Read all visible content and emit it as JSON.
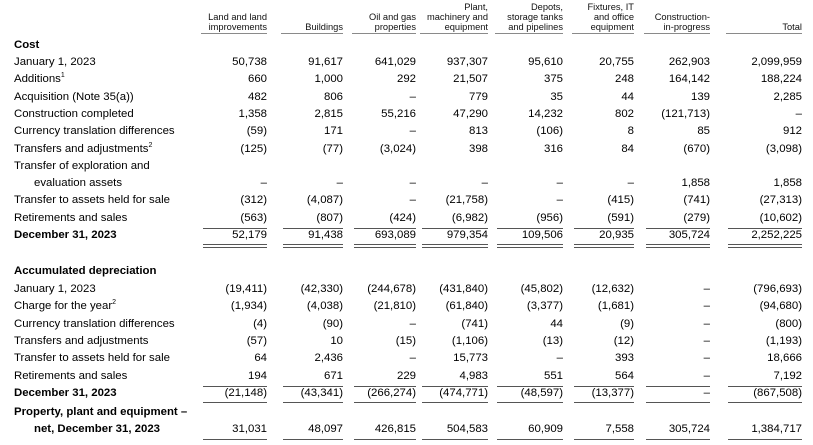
{
  "columns": [
    [
      "Land and land",
      "improvements"
    ],
    [
      "Buildings"
    ],
    [
      "Oil and gas",
      "properties"
    ],
    [
      "Plant,",
      "machinery and",
      "equipment"
    ],
    [
      "Depots,",
      "storage tanks",
      "and pipelines"
    ],
    [
      "Fixtures, IT",
      "and office",
      "equipment"
    ],
    [
      "Construction-",
      "in-progress"
    ],
    [
      "Total"
    ]
  ],
  "sections": {
    "cost": "Cost",
    "accum": "Accumulated depreciation"
  },
  "cost_rows": [
    {
      "label": "January 1, 2023",
      "sup": "",
      "values": [
        "50,738",
        "91,617",
        "641,029",
        "937,307",
        "95,610",
        "20,755",
        "262,903",
        "2,099,959"
      ]
    },
    {
      "label": "Additions",
      "sup": "1",
      "values": [
        "660",
        "1,000",
        "292",
        "21,507",
        "375",
        "248",
        "164,142",
        "188,224"
      ]
    },
    {
      "label": "Acquisition (Note 35(a))",
      "sup": "",
      "values": [
        "482",
        "806",
        "–",
        "779",
        "35",
        "44",
        "139",
        "2,285"
      ]
    },
    {
      "label": "Construction completed",
      "sup": "",
      "values": [
        "1,358",
        "2,815",
        "55,216",
        "47,290",
        "14,232",
        "802",
        "(121,713)",
        "–"
      ]
    },
    {
      "label": "Currency translation differences",
      "sup": "",
      "values": [
        "(59)",
        "171",
        "–",
        "813",
        "(106)",
        "8",
        "85",
        "912"
      ]
    },
    {
      "label": "Transfers and adjustments",
      "sup": "2",
      "values": [
        "(125)",
        "(77)",
        "(3,024)",
        "398",
        "316",
        "84",
        "(670)",
        "(3,098)"
      ]
    },
    {
      "label": "Transfer of exploration and",
      "sup": "",
      "values": [
        "",
        "",
        "",
        "",
        "",
        "",
        "",
        ""
      ]
    },
    {
      "label": "evaluation assets",
      "sup": "",
      "indent": true,
      "values": [
        "–",
        "–",
        "–",
        "–",
        "–",
        "–",
        "1,858",
        "1,858"
      ]
    },
    {
      "label": "Transfer to assets held for sale",
      "sup": "",
      "values": [
        "(312)",
        "(4,087)",
        "–",
        "(21,758)",
        "–",
        "(415)",
        "(741)",
        "(27,313)"
      ]
    },
    {
      "label": "Retirements and sales",
      "sup": "",
      "values": [
        "(563)",
        "(807)",
        "(424)",
        "(6,982)",
        "(956)",
        "(591)",
        "(279)",
        "(10,602)"
      ]
    },
    {
      "label": "December 31, 2023",
      "sup": "",
      "bold": true,
      "values": [
        "52,179",
        "91,438",
        "693,089",
        "979,354",
        "109,506",
        "20,935",
        "305,724",
        "2,252,225"
      ]
    }
  ],
  "accum_rows": [
    {
      "label": "January 1, 2023",
      "sup": "",
      "values": [
        "(19,411)",
        "(42,330)",
        "(244,678)",
        "(431,840)",
        "(45,802)",
        "(12,632)",
        "–",
        "(796,693)"
      ]
    },
    {
      "label": "Charge for the year",
      "sup": "2",
      "values": [
        "(1,934)",
        "(4,038)",
        "(21,810)",
        "(61,840)",
        "(3,377)",
        "(1,681)",
        "–",
        "(94,680)"
      ]
    },
    {
      "label": "Currency translation differences",
      "sup": "",
      "values": [
        "(4)",
        "(90)",
        "–",
        "(741)",
        "44",
        "(9)",
        "–",
        "(800)"
      ]
    },
    {
      "label": "Transfers and adjustments",
      "sup": "",
      "values": [
        "(57)",
        "10",
        "(15)",
        "(1,106)",
        "(13)",
        "(12)",
        "–",
        "(1,193)"
      ]
    },
    {
      "label": "Transfer to assets held for sale",
      "sup": "",
      "values": [
        "64",
        "2,436",
        "–",
        "15,773",
        "–",
        "393",
        "–",
        "18,666"
      ]
    },
    {
      "label": "Retirements and sales",
      "sup": "",
      "values": [
        "194",
        "671",
        "229",
        "4,983",
        "551",
        "564",
        "–",
        "7,192"
      ]
    },
    {
      "label": "December 31, 2023",
      "sup": "",
      "bold": true,
      "values": [
        "(21,148)",
        "(43,341)",
        "(266,274)",
        "(474,771)",
        "(48,597)",
        "(13,377)",
        "–",
        "(867,508)"
      ]
    }
  ],
  "net_row": {
    "label1": "Property, plant and equipment –",
    "label2": "net, December 31, 2023",
    "values": [
      "31,031",
      "48,097",
      "426,815",
      "504,583",
      "60,909",
      "7,558",
      "305,724",
      "1,384,717"
    ]
  }
}
